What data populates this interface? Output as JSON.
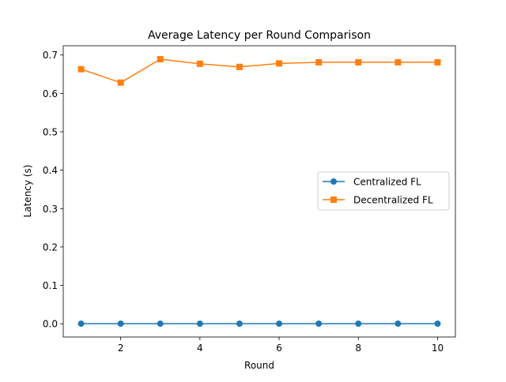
{
  "chart_data": {
    "type": "line",
    "title": "Average Latency per Round Comparison",
    "xlabel": "Round",
    "ylabel": "Latency (s)",
    "x": [
      1,
      2,
      3,
      4,
      5,
      6,
      7,
      8,
      9,
      10
    ],
    "xticks": [
      2,
      4,
      6,
      8,
      10
    ],
    "yticks": [
      0.0,
      0.1,
      0.2,
      0.3,
      0.4,
      0.5,
      0.6,
      0.7
    ],
    "ytick_format_decimals": 1,
    "xlim": [
      0.55,
      10.45
    ],
    "ylim": [
      -0.0345,
      0.724
    ],
    "grid": false,
    "legend_position": "center-right",
    "series": [
      {
        "name": "Centralized FL",
        "color": "#1f77b4",
        "marker": "circle",
        "values": [
          0.0003,
          0.0003,
          0.0003,
          0.0003,
          0.0003,
          0.0003,
          0.0003,
          0.0003,
          0.0003,
          0.0003
        ]
      },
      {
        "name": "Decentralized FL",
        "color": "#ff7f0e",
        "marker": "square",
        "values": [
          0.663,
          0.628,
          0.689,
          0.677,
          0.669,
          0.678,
          0.681,
          0.681,
          0.681,
          0.681
        ]
      }
    ]
  }
}
